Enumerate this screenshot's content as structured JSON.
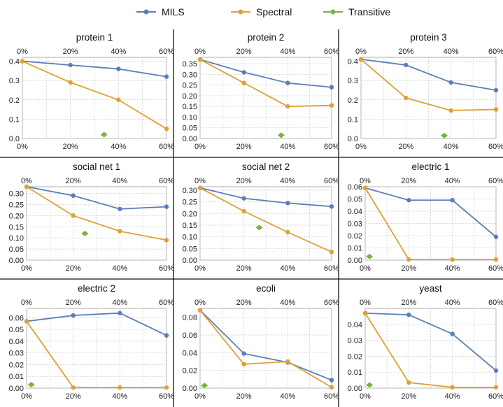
{
  "colors": {
    "mils": "#5b7fb8",
    "spectral": "#e0a032",
    "transitive": "#7bb33c"
  },
  "legend": [
    {
      "name": "MILS",
      "color": "#5b7fb8",
      "marker": "circle"
    },
    {
      "name": "Spectral",
      "color": "#e0a032",
      "marker": "circle"
    },
    {
      "name": "Transitive",
      "color": "#7bb33c",
      "marker": "diamond"
    }
  ],
  "chart_data": [
    {
      "type": "line",
      "title": "protein 1",
      "x": [
        0,
        20,
        40,
        60
      ],
      "x_tick_labels": [
        "0%",
        "20%",
        "40%",
        "60%"
      ],
      "ylim": [
        0,
        0.42
      ],
      "y_ticks": [
        0.0,
        0.1,
        0.2,
        0.3,
        0.4
      ],
      "y_tick_labels": [
        "0.0",
        "0.1",
        "0.2",
        "0.3",
        "0.4"
      ],
      "series": [
        {
          "name": "MILS",
          "x": [
            0,
            20,
            40,
            60
          ],
          "values": [
            0.4,
            0.38,
            0.36,
            0.32
          ]
        },
        {
          "name": "Spectral",
          "x": [
            0,
            20,
            40,
            60
          ],
          "values": [
            0.4,
            0.29,
            0.2,
            0.05
          ]
        },
        {
          "name": "Transitive",
          "x": [
            34
          ],
          "values": [
            0.02
          ]
        }
      ]
    },
    {
      "type": "line",
      "title": "protein 2",
      "x": [
        0,
        20,
        40,
        60
      ],
      "x_tick_labels": [
        "0%",
        "20%",
        "40%",
        "60%"
      ],
      "ylim": [
        0,
        0.38
      ],
      "y_ticks": [
        0.0,
        0.05,
        0.1,
        0.15,
        0.2,
        0.25,
        0.3,
        0.35
      ],
      "y_tick_labels": [
        "0.00",
        "0.05",
        "0.10",
        "0.15",
        "0.20",
        "0.25",
        "0.30",
        "0.35"
      ],
      "series": [
        {
          "name": "MILS",
          "x": [
            0,
            20,
            40,
            60
          ],
          "values": [
            0.37,
            0.31,
            0.26,
            0.24
          ]
        },
        {
          "name": "Spectral",
          "x": [
            0,
            20,
            40,
            60
          ],
          "values": [
            0.37,
            0.26,
            0.15,
            0.155
          ]
        },
        {
          "name": "Transitive",
          "x": [
            37
          ],
          "values": [
            0.015
          ]
        }
      ]
    },
    {
      "type": "line",
      "title": "protein 3",
      "x": [
        0,
        20,
        40,
        60
      ],
      "x_tick_labels": [
        "0%",
        "20%",
        "40%",
        "60%"
      ],
      "ylim": [
        0,
        0.42
      ],
      "y_ticks": [
        0.0,
        0.1,
        0.2,
        0.3,
        0.4
      ],
      "y_tick_labels": [
        "0.0",
        "0.1",
        "0.2",
        "0.3",
        "0.4"
      ],
      "series": [
        {
          "name": "MILS",
          "x": [
            0,
            20,
            40,
            60
          ],
          "values": [
            0.41,
            0.38,
            0.29,
            0.25
          ]
        },
        {
          "name": "Spectral",
          "x": [
            0,
            20,
            40,
            60
          ],
          "values": [
            0.41,
            0.21,
            0.145,
            0.15
          ]
        },
        {
          "name": "Transitive",
          "x": [
            37
          ],
          "values": [
            0.015
          ]
        }
      ]
    },
    {
      "type": "line",
      "title": "social net 1",
      "x": [
        0,
        20,
        40,
        60
      ],
      "x_tick_labels": [
        "0%",
        "20%",
        "40%",
        "60%"
      ],
      "ylim": [
        0,
        0.33
      ],
      "y_ticks": [
        0.0,
        0.05,
        0.1,
        0.15,
        0.2,
        0.25,
        0.3
      ],
      "y_tick_labels": [
        "0.00",
        "0.05",
        "0.10",
        "0.15",
        "0.20",
        "0.25",
        "0.30"
      ],
      "series": [
        {
          "name": "MILS",
          "x": [
            0,
            20,
            40,
            60
          ],
          "values": [
            0.33,
            0.29,
            0.23,
            0.24
          ]
        },
        {
          "name": "Spectral",
          "x": [
            0,
            20,
            40,
            60
          ],
          "values": [
            0.33,
            0.2,
            0.13,
            0.09
          ]
        },
        {
          "name": "Transitive",
          "x": [
            25
          ],
          "values": [
            0.12
          ]
        }
      ]
    },
    {
      "type": "line",
      "title": "social net 2",
      "x": [
        0,
        20,
        40,
        60
      ],
      "x_tick_labels": [
        "0%",
        "20%",
        "40%",
        "60%"
      ],
      "ylim": [
        0,
        0.315
      ],
      "y_ticks": [
        0.0,
        0.05,
        0.1,
        0.15,
        0.2,
        0.25,
        0.3
      ],
      "y_tick_labels": [
        "0.00",
        "0.05",
        "0.10",
        "0.15",
        "0.20",
        "0.25",
        "0.30"
      ],
      "series": [
        {
          "name": "MILS",
          "x": [
            0,
            20,
            40,
            60
          ],
          "values": [
            0.31,
            0.265,
            0.245,
            0.23
          ]
        },
        {
          "name": "Spectral",
          "x": [
            0,
            20,
            40,
            60
          ],
          "values": [
            0.31,
            0.21,
            0.12,
            0.035
          ]
        },
        {
          "name": "Transitive",
          "x": [
            27
          ],
          "values": [
            0.14
          ]
        }
      ]
    },
    {
      "type": "line",
      "title": "electric 1",
      "x": [
        0,
        20,
        40,
        60
      ],
      "x_tick_labels": [
        "0%",
        "20%",
        "40%",
        "60%"
      ],
      "ylim": [
        0,
        0.06
      ],
      "y_ticks": [
        0.0,
        0.01,
        0.02,
        0.03,
        0.04,
        0.05,
        0.06
      ],
      "y_tick_labels": [
        "0.00",
        "0.01",
        "0.02",
        "0.03",
        "0.04",
        "0.05",
        "0.06"
      ],
      "series": [
        {
          "name": "MILS",
          "x": [
            0,
            20,
            40,
            60
          ],
          "values": [
            0.059,
            0.049,
            0.049,
            0.019
          ]
        },
        {
          "name": "Spectral",
          "x": [
            0,
            20,
            40,
            60
          ],
          "values": [
            0.059,
            0.0005,
            0.0005,
            0.0005
          ]
        },
        {
          "name": "Transitive",
          "x": [
            2
          ],
          "values": [
            0.003
          ]
        }
      ]
    },
    {
      "type": "line",
      "title": "electric 2",
      "x": [
        0,
        20,
        40,
        60
      ],
      "x_tick_labels": [
        "0%",
        "20%",
        "40%",
        "60%"
      ],
      "ylim": [
        0,
        0.068
      ],
      "y_ticks": [
        0.0,
        0.01,
        0.02,
        0.03,
        0.04,
        0.05,
        0.06
      ],
      "y_tick_labels": [
        "0.00",
        "0.01",
        "0.02",
        "0.03",
        "0.04",
        "0.05",
        "0.06"
      ],
      "series": [
        {
          "name": "MILS",
          "x": [
            0,
            20,
            40,
            60
          ],
          "values": [
            0.057,
            0.062,
            0.064,
            0.045
          ]
        },
        {
          "name": "Spectral",
          "x": [
            0,
            20,
            40,
            60
          ],
          "values": [
            0.057,
            0.0005,
            0.0005,
            0.0005
          ]
        },
        {
          "name": "Transitive",
          "x": [
            2
          ],
          "values": [
            0.003
          ]
        }
      ]
    },
    {
      "type": "line",
      "title": "ecoli",
      "x": [
        0,
        20,
        40,
        60
      ],
      "x_tick_labels": [
        "0%",
        "20%",
        "40%",
        "60%"
      ],
      "ylim": [
        0,
        0.09
      ],
      "y_ticks": [
        0.0,
        0.02,
        0.04,
        0.06,
        0.08
      ],
      "y_tick_labels": [
        "0.00",
        "0.02",
        "0.04",
        "0.06",
        "0.08"
      ],
      "series": [
        {
          "name": "MILS",
          "x": [
            0,
            20,
            40,
            60
          ],
          "values": [
            0.088,
            0.039,
            0.029,
            0.009
          ]
        },
        {
          "name": "Spectral",
          "x": [
            0,
            20,
            40,
            60
          ],
          "values": [
            0.088,
            0.027,
            0.03,
            0.001
          ]
        },
        {
          "name": "Transitive",
          "x": [
            2
          ],
          "values": [
            0.003
          ]
        }
      ]
    },
    {
      "type": "line",
      "title": "yeast",
      "x": [
        0,
        20,
        40,
        60
      ],
      "x_tick_labels": [
        "0%",
        "20%",
        "40%",
        "60%"
      ],
      "ylim": [
        0,
        0.05
      ],
      "y_ticks": [
        0.0,
        0.01,
        0.02,
        0.03,
        0.04
      ],
      "y_tick_labels": [
        "0.00",
        "0.01",
        "0.02",
        "0.03",
        "0.04"
      ],
      "series": [
        {
          "name": "MILS",
          "x": [
            0,
            20,
            40,
            60
          ],
          "values": [
            0.047,
            0.046,
            0.034,
            0.011
          ]
        },
        {
          "name": "Spectral",
          "x": [
            0,
            20,
            40,
            60
          ],
          "values": [
            0.047,
            0.0035,
            0.0005,
            0.0005
          ]
        },
        {
          "name": "Transitive",
          "x": [
            2
          ],
          "values": [
            0.002
          ]
        }
      ]
    }
  ]
}
